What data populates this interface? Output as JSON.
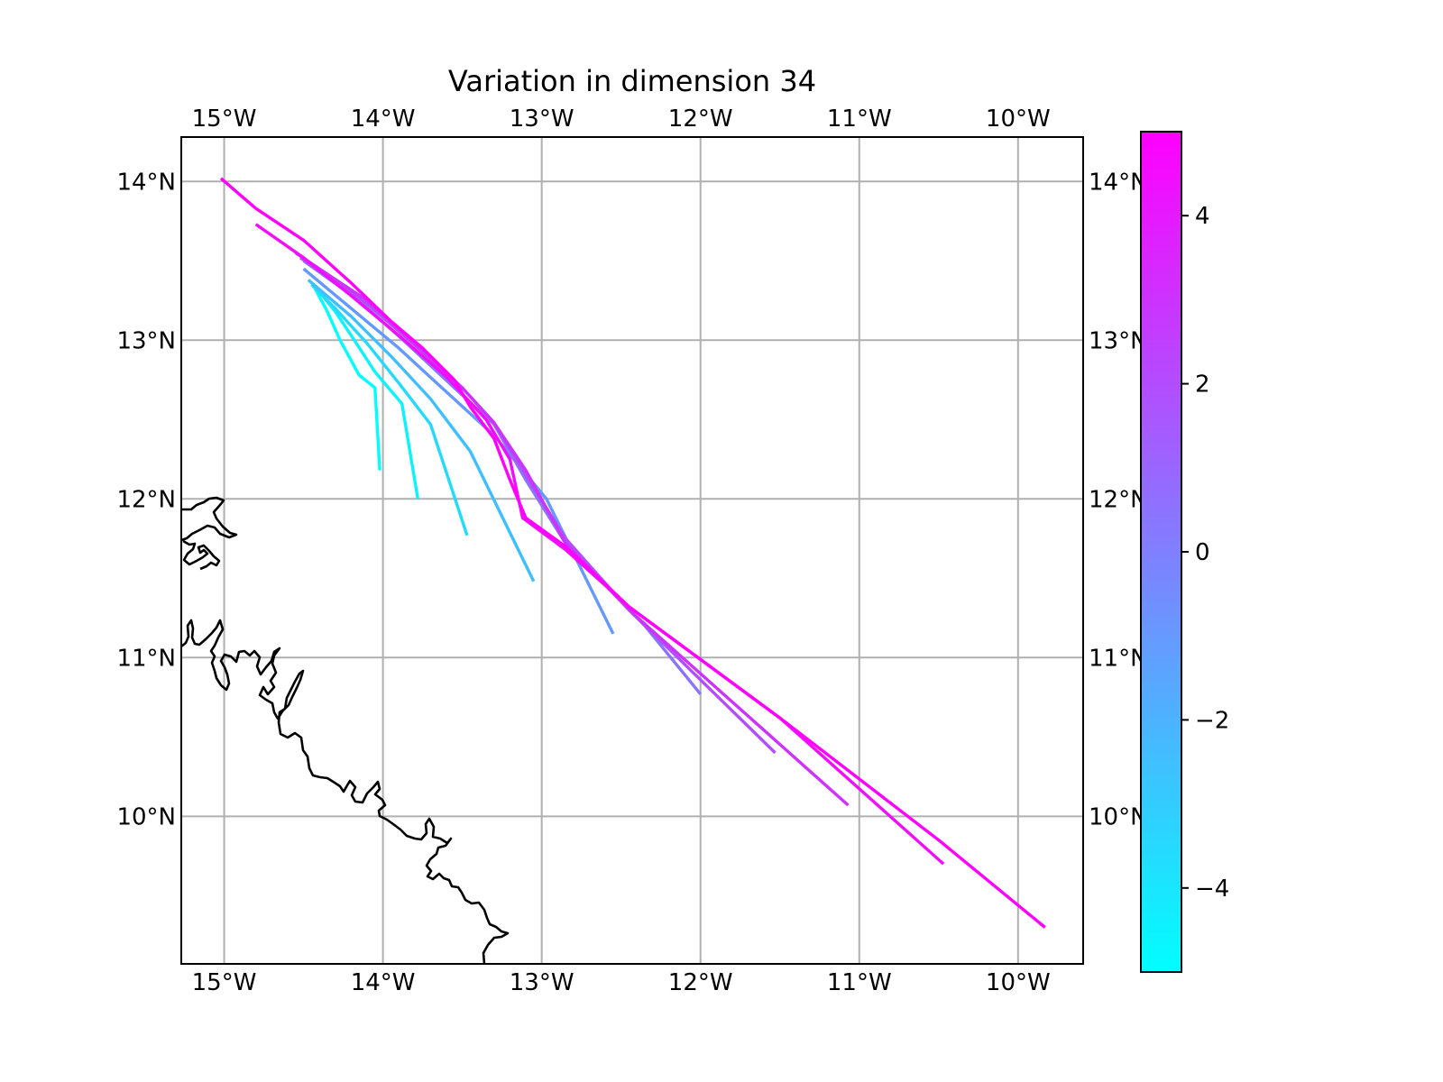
{
  "chart_data": {
    "type": "line",
    "title": "Variation in dimension 34",
    "xlabel": "",
    "ylabel": "",
    "xlim": [
      -15.27,
      -9.59
    ],
    "ylim": [
      9.07,
      14.28
    ],
    "x_ticks": [
      {
        "value": -15,
        "label": "15°W"
      },
      {
        "value": -14,
        "label": "14°W"
      },
      {
        "value": -13,
        "label": "13°W"
      },
      {
        "value": -12,
        "label": "12°W"
      },
      {
        "value": -11,
        "label": "11°W"
      },
      {
        "value": -10,
        "label": "10°W"
      }
    ],
    "y_ticks": [
      {
        "value": 14,
        "label": "14°N"
      },
      {
        "value": 13,
        "label": "13°N"
      },
      {
        "value": 12,
        "label": "12°N"
      },
      {
        "value": 11,
        "label": "11°N"
      },
      {
        "value": 10,
        "label": "10°N"
      }
    ],
    "grid": true,
    "colormap": {
      "name": "cool",
      "low_color": "#00ffff",
      "high_color": "#ff00ff",
      "range": [
        -5,
        5
      ],
      "ticks": [
        {
          "value": 4,
          "label": "4"
        },
        {
          "value": 2,
          "label": "2"
        },
        {
          "value": 0,
          "label": "0"
        },
        {
          "value": -2,
          "label": "−2"
        },
        {
          "value": -4,
          "label": "−4"
        }
      ]
    },
    "series": [
      {
        "value": -5,
        "points": [
          [
            -14.43,
            13.33
          ],
          [
            -14.35,
            13.18
          ],
          [
            -14.27,
            13.0
          ],
          [
            -14.15,
            12.78
          ],
          [
            -14.05,
            12.7
          ],
          [
            -14.02,
            12.18
          ]
        ]
      },
      {
        "value": -4.5,
        "points": [
          [
            -14.42,
            13.33
          ],
          [
            -14.3,
            13.18
          ],
          [
            -14.18,
            13.0
          ],
          [
            -14.05,
            12.8
          ],
          [
            -13.88,
            12.6
          ],
          [
            -13.78,
            12.0
          ]
        ]
      },
      {
        "value": -3.5,
        "points": [
          [
            -14.45,
            13.35
          ],
          [
            -14.3,
            13.2
          ],
          [
            -14.1,
            12.98
          ],
          [
            -13.9,
            12.73
          ],
          [
            -13.7,
            12.47
          ],
          [
            -13.47,
            11.77
          ]
        ]
      },
      {
        "value": -2.5,
        "points": [
          [
            -14.47,
            13.38
          ],
          [
            -14.2,
            13.15
          ],
          [
            -13.95,
            12.9
          ],
          [
            -13.7,
            12.63
          ],
          [
            -13.45,
            12.3
          ],
          [
            -13.05,
            11.48
          ]
        ]
      },
      {
        "value": -1.0,
        "points": [
          [
            -14.5,
            13.45
          ],
          [
            -14.2,
            13.2
          ],
          [
            -13.9,
            12.95
          ],
          [
            -13.65,
            12.72
          ],
          [
            -13.3,
            12.4
          ],
          [
            -12.97,
            12.0
          ],
          [
            -12.55,
            11.15
          ]
        ]
      },
      {
        "value": 0.5,
        "points": [
          [
            -14.5,
            13.5
          ],
          [
            -14.15,
            13.25
          ],
          [
            -13.85,
            12.98
          ],
          [
            -13.55,
            12.7
          ],
          [
            -13.3,
            12.47
          ],
          [
            -13.1,
            12.12
          ],
          [
            -12.85,
            11.72
          ],
          [
            -12.35,
            11.2
          ],
          [
            -12.0,
            10.77
          ]
        ]
      },
      {
        "value": 2.0,
        "points": [
          [
            -14.52,
            13.52
          ],
          [
            -14.1,
            13.23
          ],
          [
            -13.8,
            12.97
          ],
          [
            -13.5,
            12.7
          ],
          [
            -13.3,
            12.48
          ],
          [
            -13.1,
            12.15
          ],
          [
            -12.85,
            11.75
          ],
          [
            -12.45,
            11.3
          ],
          [
            -11.53,
            10.4
          ]
        ]
      },
      {
        "value": 3.0,
        "points": [
          [
            -14.55,
            13.55
          ],
          [
            -14.1,
            13.25
          ],
          [
            -13.8,
            12.98
          ],
          [
            -13.5,
            12.7
          ],
          [
            -13.3,
            12.48
          ],
          [
            -13.1,
            12.18
          ],
          [
            -12.85,
            11.72
          ],
          [
            -12.45,
            11.3
          ],
          [
            -11.07,
            10.07
          ]
        ]
      },
      {
        "value": 4.5,
        "points": [
          [
            -14.8,
            13.73
          ],
          [
            -14.5,
            13.52
          ],
          [
            -14.2,
            13.28
          ],
          [
            -13.9,
            13.03
          ],
          [
            -13.6,
            12.77
          ],
          [
            -13.35,
            12.5
          ],
          [
            -13.2,
            12.25
          ],
          [
            -13.12,
            11.88
          ],
          [
            -12.85,
            11.68
          ],
          [
            -12.45,
            11.32
          ],
          [
            -11.5,
            10.62
          ],
          [
            -10.47,
            9.7
          ]
        ]
      },
      {
        "value": 5.0,
        "points": [
          [
            -15.02,
            14.02
          ],
          [
            -14.8,
            13.83
          ],
          [
            -14.5,
            13.63
          ],
          [
            -14.2,
            13.36
          ],
          [
            -13.95,
            13.12
          ],
          [
            -13.75,
            12.95
          ],
          [
            -13.55,
            12.75
          ],
          [
            -13.45,
            12.58
          ],
          [
            -13.3,
            12.38
          ],
          [
            -13.2,
            12.12
          ],
          [
            -13.1,
            11.88
          ],
          [
            -12.85,
            11.7
          ],
          [
            -12.45,
            11.32
          ],
          [
            -11.5,
            10.62
          ],
          [
            -10.5,
            9.85
          ],
          [
            -9.83,
            9.3
          ]
        ]
      }
    ]
  }
}
